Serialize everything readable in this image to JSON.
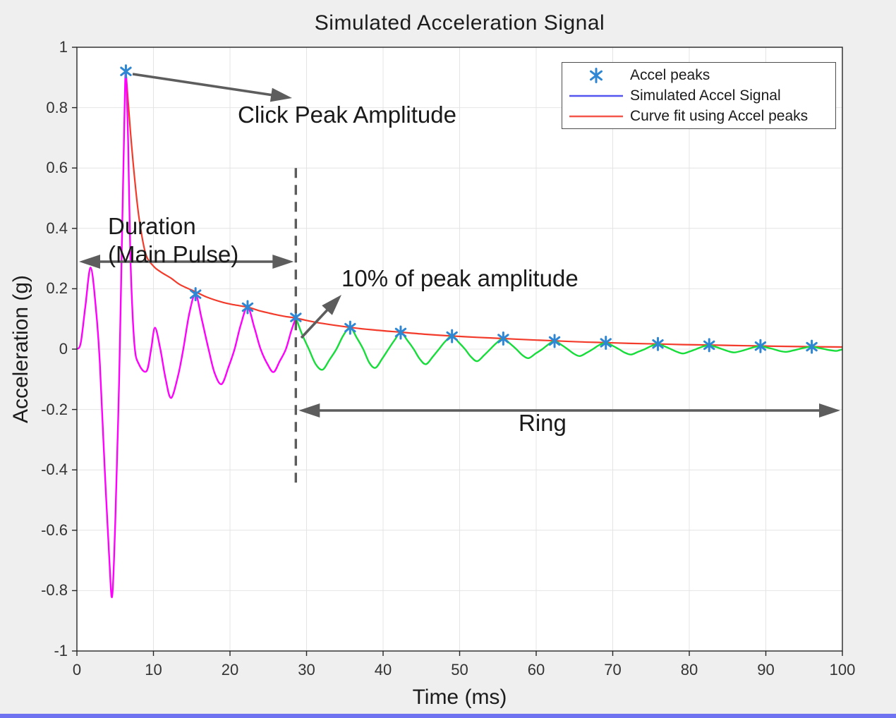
{
  "figure": {
    "background": "#efefef",
    "plot_background": "#ffffff",
    "bottom_bar_color": "#6e72f0"
  },
  "chart_data": {
    "type": "line",
    "title": "Simulated Acceleration Signal",
    "xlabel": "Time (ms)",
    "ylabel": "Acceleration (g)",
    "xlim": [
      0,
      100
    ],
    "ylim": [
      -1,
      1
    ],
    "xticks": [
      0,
      10,
      20,
      30,
      40,
      50,
      60,
      70,
      80,
      90,
      100
    ],
    "yticks": [
      -1,
      -0.8,
      -0.6,
      -0.4,
      -0.2,
      0,
      0.2,
      0.4,
      0.6,
      0.8,
      1
    ],
    "grid": true,
    "grid_color": "#e4e4e4",
    "axis_color": "#262626",
    "legend": {
      "position": "top-right",
      "entries": [
        {
          "label": "Accel peaks",
          "marker": "asterisk",
          "color": "#2f86d2"
        },
        {
          "label": "Simulated Accel Signal",
          "marker": "line",
          "color": "#5555f0"
        },
        {
          "label": "Curve fit using Accel peaks",
          "marker": "line",
          "color": "#f4564a"
        }
      ]
    },
    "series": [
      {
        "name": "Accel peaks",
        "role": "peaks",
        "type": "scatter",
        "marker": "asterisk",
        "color": "#2f86d2",
        "points": [
          [
            6.4,
            0.92
          ],
          [
            15.5,
            0.182
          ],
          [
            22.3,
            0.139
          ],
          [
            28.6,
            0.105
          ],
          [
            35.7,
            0.071
          ],
          [
            42.3,
            0.055
          ],
          [
            49.0,
            0.043
          ],
          [
            55.7,
            0.035
          ],
          [
            62.4,
            0.027
          ],
          [
            69.1,
            0.021
          ],
          [
            75.9,
            0.017
          ],
          [
            82.6,
            0.013
          ],
          [
            89.3,
            0.01
          ],
          [
            96.0,
            0.008
          ]
        ]
      },
      {
        "name": "Simulated Accel Signal (main pulse segment)",
        "role": "main",
        "type": "line",
        "color": "#ff00ff",
        "points": [
          [
            0,
            0
          ],
          [
            0.5,
            0.02
          ],
          [
            1.1,
            0.14
          ],
          [
            1.8,
            0.27
          ],
          [
            2.5,
            0.13
          ],
          [
            3.0,
            -0.05
          ],
          [
            3.6,
            -0.38
          ],
          [
            4.2,
            -0.68
          ],
          [
            4.6,
            -0.82
          ],
          [
            5.0,
            -0.58
          ],
          [
            5.5,
            -0.12
          ],
          [
            5.9,
            0.38
          ],
          [
            6.2,
            0.76
          ],
          [
            6.4,
            0.92
          ],
          [
            6.7,
            0.68
          ],
          [
            7.0,
            0.3
          ],
          [
            7.5,
            0.02
          ],
          [
            8.1,
            -0.05
          ],
          [
            9.1,
            -0.073
          ],
          [
            9.7,
            0
          ],
          [
            10.2,
            0.071
          ],
          [
            10.9,
            0
          ],
          [
            11.6,
            -0.1
          ],
          [
            12.3,
            -0.162
          ],
          [
            13.2,
            -0.09
          ],
          [
            13.9,
            0
          ],
          [
            14.7,
            0.12
          ],
          [
            15.5,
            0.182
          ],
          [
            16.3,
            0.1
          ],
          [
            17.2,
            0
          ],
          [
            18.0,
            -0.08
          ],
          [
            18.9,
            -0.116
          ],
          [
            19.8,
            -0.06
          ],
          [
            20.6,
            0
          ],
          [
            21.4,
            0.08
          ],
          [
            22.3,
            0.139
          ],
          [
            23.2,
            0.07
          ],
          [
            24.0,
            0
          ],
          [
            24.9,
            -0.05
          ],
          [
            25.7,
            -0.076
          ],
          [
            26.5,
            -0.04
          ],
          [
            27.3,
            0
          ],
          [
            28.0,
            0.06
          ],
          [
            28.6,
            0.105
          ]
        ]
      },
      {
        "name": "Simulated Accel Signal (ring segment)",
        "role": "ring",
        "type": "line",
        "color": "#17dd3a",
        "points": [
          [
            28.6,
            0.105
          ],
          [
            29.4,
            0.05
          ],
          [
            30.3,
            0
          ],
          [
            31.2,
            -0.05
          ],
          [
            32.1,
            -0.068
          ],
          [
            33.0,
            -0.035
          ],
          [
            33.9,
            0
          ],
          [
            34.8,
            0.045
          ],
          [
            35.7,
            0.071
          ],
          [
            36.6,
            0.036
          ],
          [
            37.4,
            0
          ],
          [
            38.2,
            -0.045
          ],
          [
            39.0,
            -0.062
          ],
          [
            39.9,
            -0.031
          ],
          [
            40.7,
            0
          ],
          [
            41.5,
            0.03
          ],
          [
            42.3,
            0.055
          ],
          [
            43.2,
            0.028
          ],
          [
            44.0,
            0
          ],
          [
            44.8,
            -0.033
          ],
          [
            45.6,
            -0.05
          ],
          [
            46.5,
            -0.025
          ],
          [
            47.3,
            0
          ],
          [
            48.1,
            0.025
          ],
          [
            49.0,
            0.043
          ],
          [
            49.9,
            0.022
          ],
          [
            50.7,
            0
          ],
          [
            51.5,
            -0.026
          ],
          [
            52.3,
            -0.04
          ],
          [
            53.2,
            -0.02
          ],
          [
            54.0,
            0
          ],
          [
            54.8,
            0.02
          ],
          [
            55.7,
            0.035
          ],
          [
            56.6,
            0.018
          ],
          [
            57.4,
            0
          ],
          [
            58.2,
            -0.02
          ],
          [
            59.0,
            -0.03
          ],
          [
            59.9,
            -0.015
          ],
          [
            60.8,
            0
          ],
          [
            61.6,
            0.016
          ],
          [
            62.4,
            0.027
          ],
          [
            63.3,
            0.014
          ],
          [
            64.1,
            0
          ],
          [
            64.9,
            -0.015
          ],
          [
            65.7,
            -0.023
          ],
          [
            66.6,
            -0.012
          ],
          [
            67.4,
            0
          ],
          [
            68.2,
            0.013
          ],
          [
            69.1,
            0.021
          ],
          [
            70.0,
            0.011
          ],
          [
            70.8,
            0
          ],
          [
            71.6,
            -0.012
          ],
          [
            72.4,
            -0.018
          ],
          [
            73.3,
            -0.009
          ],
          [
            74.2,
            0
          ],
          [
            75.0,
            0.01
          ],
          [
            75.9,
            0.017
          ],
          [
            76.8,
            0.009
          ],
          [
            77.6,
            0
          ],
          [
            78.4,
            -0.009
          ],
          [
            79.2,
            -0.0145
          ],
          [
            80.1,
            -0.0075
          ],
          [
            80.9,
            0
          ],
          [
            81.7,
            0.008
          ],
          [
            82.6,
            0.013
          ],
          [
            83.5,
            0.007
          ],
          [
            84.3,
            0
          ],
          [
            85.1,
            -0.007
          ],
          [
            85.9,
            -0.011
          ],
          [
            86.8,
            -0.006
          ],
          [
            87.6,
            0
          ],
          [
            88.4,
            0.006
          ],
          [
            89.3,
            0.01
          ],
          [
            90.2,
            0.005
          ],
          [
            91.0,
            0
          ],
          [
            91.8,
            -0.006
          ],
          [
            92.6,
            -0.009
          ],
          [
            93.5,
            -0.005
          ],
          [
            94.3,
            0
          ],
          [
            95.1,
            0.005
          ],
          [
            96.0,
            0.008
          ],
          [
            96.9,
            0.004
          ],
          [
            97.7,
            0
          ],
          [
            98.5,
            -0.004
          ],
          [
            99.2,
            -0.006
          ],
          [
            99.7,
            -0.003
          ],
          [
            100,
            -0.001
          ]
        ]
      },
      {
        "name": "Curve fit using Accel peaks",
        "role": "fit",
        "type": "line",
        "color": "#f23b2b",
        "points": [
          [
            6.4,
            0.92
          ],
          [
            7.0,
            0.72
          ],
          [
            7.6,
            0.55
          ],
          [
            8.2,
            0.42
          ],
          [
            9.0,
            0.315
          ],
          [
            10,
            0.275
          ],
          [
            11,
            0.255
          ],
          [
            12.3,
            0.235
          ],
          [
            13.5,
            0.213
          ],
          [
            15.5,
            0.19
          ],
          [
            17,
            0.172
          ],
          [
            18.9,
            0.156
          ],
          [
            20.5,
            0.147
          ],
          [
            22.3,
            0.139
          ],
          [
            24,
            0.126
          ],
          [
            25.7,
            0.116
          ],
          [
            27,
            0.109
          ],
          [
            28.6,
            0.103
          ],
          [
            30,
            0.095
          ],
          [
            32.1,
            0.085
          ],
          [
            35.7,
            0.072
          ],
          [
            39,
            0.063
          ],
          [
            42.3,
            0.056
          ],
          [
            45.6,
            0.049
          ],
          [
            49,
            0.0435
          ],
          [
            52.3,
            0.039
          ],
          [
            55.7,
            0.035
          ],
          [
            59,
            0.031
          ],
          [
            62.4,
            0.0275
          ],
          [
            65.7,
            0.024
          ],
          [
            69.1,
            0.0215
          ],
          [
            72.4,
            0.019
          ],
          [
            75.9,
            0.017
          ],
          [
            79.2,
            0.015
          ],
          [
            82.6,
            0.0135
          ],
          [
            85.9,
            0.012
          ],
          [
            89.3,
            0.0105
          ],
          [
            92.6,
            0.009
          ],
          [
            96,
            0.008
          ],
          [
            100,
            0.007
          ]
        ]
      }
    ],
    "annotations": {
      "click_peak": "Click Peak Amplitude",
      "duration_line1": "Duration",
      "duration_line2": "(Main Pulse)",
      "pct": "10% of peak amplitude",
      "ring": "Ring",
      "dashed_line_x_ms": 28.6,
      "dashed_line_y_range_g": [
        0.6,
        -0.465
      ],
      "annotation_color": "#5d5d5d"
    }
  }
}
